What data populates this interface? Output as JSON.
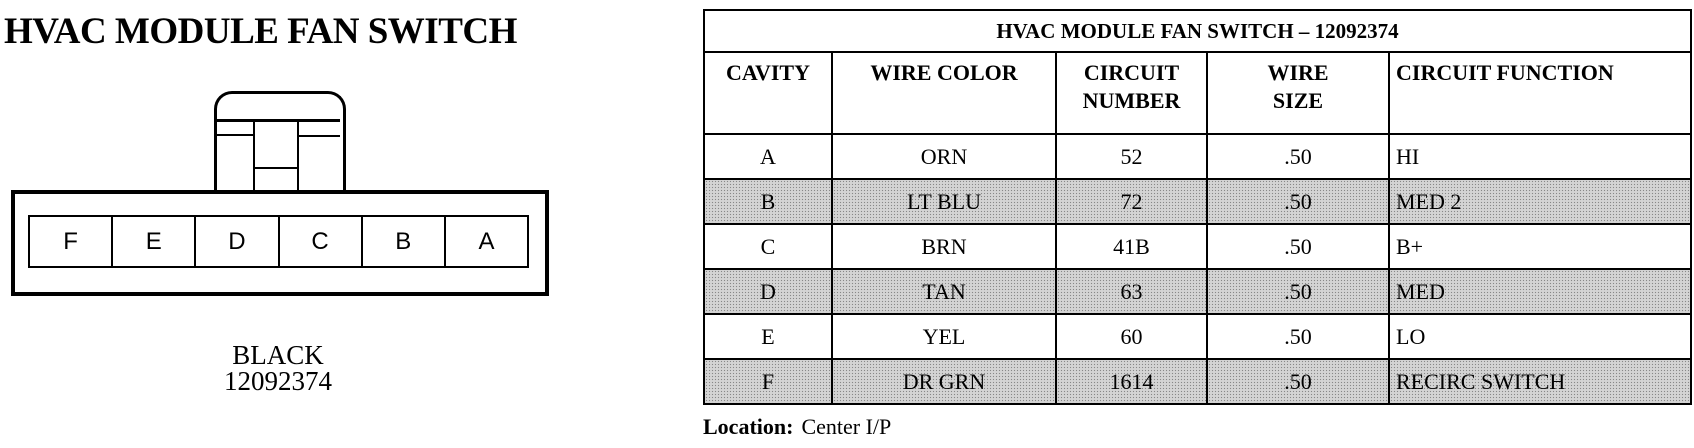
{
  "diagram": {
    "title": "HVAC MODULE FAN SWITCH",
    "cavities": [
      "F",
      "E",
      "D",
      "C",
      "B",
      "A"
    ],
    "connector_color": "BLACK",
    "part_number": "12092374"
  },
  "table": {
    "title": "HVAC MODULE FAN SWITCH – 12092374",
    "headers": {
      "cavity": "CAVITY",
      "wire_color": "WIRE COLOR",
      "circuit_number": [
        "CIRCUIT",
        "NUMBER"
      ],
      "wire_size": [
        "WIRE",
        "SIZE"
      ],
      "circuit_function": "CIRCUIT FUNCTION"
    },
    "rows": [
      {
        "cavity": "A",
        "wire_color": "ORN",
        "circuit": "52",
        "size": ".50",
        "function": "HI",
        "shaded": false
      },
      {
        "cavity": "B",
        "wire_color": "LT BLU",
        "circuit": "72",
        "size": ".50",
        "function": "MED 2",
        "shaded": true
      },
      {
        "cavity": "C",
        "wire_color": "BRN",
        "circuit": "41B",
        "size": ".50",
        "function": "B+",
        "shaded": false
      },
      {
        "cavity": "D",
        "wire_color": "TAN",
        "circuit": "63",
        "size": ".50",
        "function": "MED",
        "shaded": true
      },
      {
        "cavity": "E",
        "wire_color": "YEL",
        "circuit": "60",
        "size": ".50",
        "function": "LO",
        "shaded": false
      },
      {
        "cavity": "F",
        "wire_color": "DR GRN",
        "circuit": "1614",
        "size": ".50",
        "function": "RECIRC SWITCH",
        "shaded": true
      }
    ]
  },
  "location": {
    "label": "Location:",
    "value": "Center I/P"
  }
}
